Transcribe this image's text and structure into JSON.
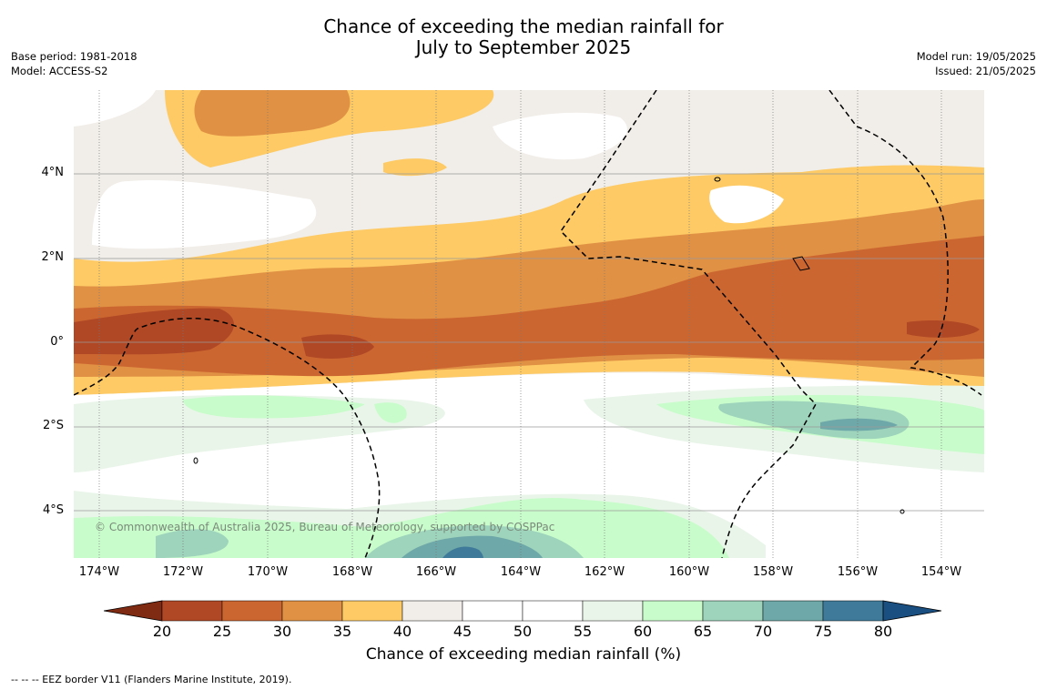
{
  "title_line1": "Chance of exceeding the median rainfall for",
  "title_line2": "July to September 2025",
  "base_period": "Base period: 1981-2018",
  "model": "Model: ACCESS-S2",
  "model_run": "Model run: 19/05/2025",
  "issued": "Issued: 21/05/2025",
  "map": {
    "lat_ticks": [
      "4°N",
      "2°N",
      "0°",
      "2°S",
      "4°S"
    ],
    "lon_ticks": [
      "174°W",
      "172°W",
      "170°W",
      "168°W",
      "166°W",
      "164°W",
      "162°W",
      "160°W",
      "158°W",
      "156°W",
      "154°W"
    ],
    "watermark": "© Commonwealth of Australia 2025, Bureau of Meteorology, supported by COSPPac"
  },
  "colorbar": {
    "title": "Chance of exceeding median rainfall (%)",
    "labels": [
      "20",
      "25",
      "30",
      "35",
      "40",
      "45",
      "50",
      "55",
      "60",
      "65",
      "70",
      "75",
      "80"
    ],
    "colors": [
      "#7f2a12",
      "#b04825",
      "#cc6631",
      "#e09144",
      "#fdca65",
      "#f1ede8",
      "#ffffff",
      "#ffffff",
      "#eaf5ea",
      "#c9fccb",
      "#9ed3bc",
      "#6fa8a8",
      "#407a9a",
      "#1a4f82"
    ]
  },
  "footnote": "--  --  -- EEZ border V11 (Flanders Marine Institute, 2019)."
}
